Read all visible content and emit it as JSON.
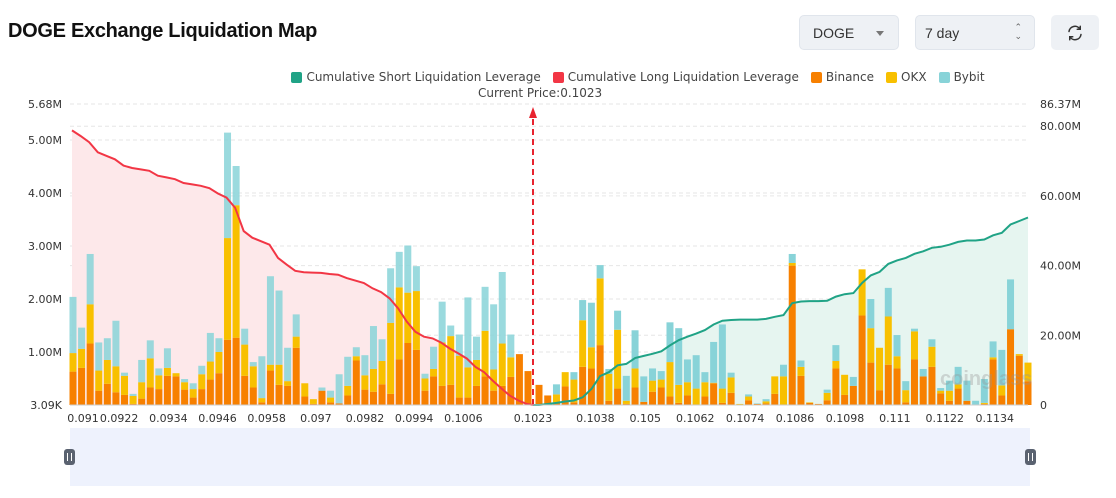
{
  "header": {
    "title": "DOGE Exchange Liquidation Map"
  },
  "controls": {
    "symbol": "DOGE",
    "period": "7 day",
    "refresh_icon": "refresh-icon"
  },
  "watermark": "coinglass",
  "colors": {
    "short": "#20a386",
    "long": "#f23645",
    "binance": "#f78000",
    "okx": "#f8c000",
    "bybit": "#88d3d8",
    "long_fill": "#fde8ea",
    "short_fill": "#e6f5f0",
    "current_line": "#e8232f"
  },
  "chart_data": {
    "type": "bar",
    "legend": [
      "Cumulative Short Liquidation Leverage",
      "Cumulative Long Liquidation Leverage",
      "Binance",
      "OKX",
      "Bybit"
    ],
    "legend_placement": "top",
    "current_price_label": "Current Price:0.1023",
    "current_price": 0.1023,
    "x_range": [
      0.091,
      0.1142
    ],
    "x_ticks": [
      "0.091",
      "0.0922",
      "0.0934",
      "0.0946",
      "0.0958",
      "0.097",
      "0.0982",
      "0.0994",
      "0.1006",
      "0.1023",
      "0.1038",
      "0.105",
      "0.1062",
      "0.1074",
      "0.1086",
      "0.1098",
      "0.111",
      "0.1122",
      "0.1134"
    ],
    "y_left": {
      "range_m": [
        0.00309,
        5.68
      ],
      "ticks": [
        "3.09K",
        "1.00M",
        "2.00M",
        "3.00M",
        "4.00M",
        "5.00M",
        "5.68M"
      ],
      "tick_values_m": [
        0.00309,
        1,
        2,
        3,
        4,
        5,
        5.68
      ]
    },
    "y_right": {
      "range_m": [
        0,
        86.37
      ],
      "ticks": [
        "0",
        "20.00M",
        "40.00M",
        "60.00M",
        "80.00M",
        "86.37M"
      ],
      "tick_values_m": [
        0,
        20,
        40,
        60,
        80,
        86.37
      ]
    },
    "grid": true,
    "bars_below_price": [
      [
        0.63,
        0.35,
        1.06
      ],
      [
        0.7,
        0.36,
        0.4
      ],
      [
        1.16,
        0.74,
        0.95
      ],
      [
        0.27,
        0.38,
        0.53
      ],
      [
        0.4,
        0.45,
        0.41
      ],
      [
        0.24,
        0.49,
        0.86
      ],
      [
        0.19,
        0.36,
        0.06
      ],
      [
        0.02,
        0.15,
        0.04
      ],
      [
        0.12,
        0.31,
        0.42
      ],
      [
        0.33,
        0.55,
        0.34
      ],
      [
        0.3,
        0.26,
        0.13
      ],
      [
        0.55,
        0.15,
        0.37
      ],
      [
        0.54,
        0.06,
        0
      ],
      [
        0.29,
        0.14,
        0.06
      ],
      [
        0.14,
        0.16,
        0.11
      ],
      [
        0.3,
        0.28,
        0.16
      ],
      [
        0.48,
        0.34,
        0.54
      ],
      [
        0.6,
        0.4,
        0.26
      ],
      [
        1.23,
        1.92,
        1.99
      ],
      [
        1.27,
        2.5,
        0.74
      ],
      [
        0.55,
        0.59,
        0.3
      ],
      [
        0.33,
        0.4,
        0.08
      ],
      [
        0.05,
        0.08,
        0.79
      ],
      [
        0.65,
        0.11,
        1.67
      ],
      [
        0.38,
        0.38,
        1.4
      ],
      [
        0.36,
        0.09,
        0.63
      ],
      [
        1.08,
        0.21,
        0.42
      ],
      [
        0.16,
        0.25,
        0
      ],
      [
        0.02,
        0.09,
        0
      ],
      [
        0.27,
        0,
        0.06
      ],
      [
        0.05,
        0.09,
        0.13
      ],
      [
        0.03,
        0,
        0.55
      ],
      [
        0.18,
        0.18,
        0.55
      ],
      [
        0.84,
        0.08,
        0.17
      ],
      [
        0.29,
        0.27,
        0.38
      ],
      [
        0.25,
        0.43,
        0.81
      ],
      [
        0.39,
        0.44,
        0.41
      ],
      [
        0.21,
        1.34,
        1.03
      ],
      [
        0.86,
        1.36,
        0.67
      ],
      [
        1.17,
        0.95,
        0.89
      ],
      [
        1.04,
        1.11,
        0.47
      ],
      [
        0.27,
        0.23,
        0.09
      ],
      [
        0.54,
        0.14,
        0.42
      ],
      [
        0.36,
        0.82,
        0.77
      ],
      [
        0.38,
        0.92,
        0.2
      ],
      [
        0.14,
        0.79,
        0.4
      ],
      [
        0.14,
        0.57,
        1.32
      ],
      [
        0.36,
        0.49,
        0.44
      ],
      [
        0.54,
        0.86,
        0.83
      ],
      [
        0.27,
        0.4,
        1.23
      ],
      [
        0.36,
        0.8,
        1.35
      ],
      [
        0.53,
        0.37,
        0.43
      ],
      [
        0.96,
        0,
        0
      ],
      [
        0.64,
        0,
        0
      ]
    ],
    "bars_above_price": [
      [
        0.38,
        0,
        0
      ],
      [
        0.18,
        0,
        0
      ],
      [
        0.05,
        0.15,
        0.19
      ],
      [
        0.35,
        0.27,
        0
      ],
      [
        0.05,
        0.43,
        0.14
      ],
      [
        0.72,
        0.88,
        0.38
      ],
      [
        0.69,
        0.4,
        0.84
      ],
      [
        1.13,
        1.26,
        0.25
      ],
      [
        0.08,
        0.51,
        0.09
      ],
      [
        0.31,
        1.11,
        0.36
      ],
      [
        0.02,
        0.06,
        0.47
      ],
      [
        0.33,
        0.36,
        0.72
      ],
      [
        0.06,
        0,
        0.48
      ],
      [
        0.25,
        0.21,
        0.23
      ],
      [
        0.33,
        0.15,
        0.16
      ],
      [
        0.16,
        0.65,
        0.75
      ],
      [
        0.04,
        0.34,
        1.07
      ],
      [
        0.18,
        0.25,
        0.43
      ],
      [
        0,
        0.31,
        0.63
      ],
      [
        0.16,
        0.27,
        0.19
      ],
      [
        0.41,
        0.01,
        0.77
      ],
      [
        0.04,
        0.27,
        1.21
      ],
      [
        0.23,
        0.29,
        0.09
      ],
      [
        0.01,
        0.01,
        0
      ],
      [
        0.09,
        0.07,
        0.04
      ],
      [
        0.02,
        0,
        0.01
      ],
      [
        0.03,
        0.04,
        0.04
      ],
      [
        0.21,
        0.33,
        0
      ],
      [
        0,
        0.54,
        0.22
      ],
      [
        2.63,
        0.05,
        0.17
      ],
      [
        0.55,
        0.17,
        0.12
      ],
      [
        0.04,
        0.01,
        0
      ],
      [
        0.02,
        0,
        0
      ],
      [
        0.09,
        0.14,
        0.06
      ],
      [
        0.69,
        0.14,
        0.3
      ],
      [
        0.19,
        0.38,
        0
      ],
      [
        0.36,
        0,
        0.17
      ],
      [
        1.69,
        0.87,
        0
      ],
      [
        0.8,
        0.65,
        0.55
      ],
      [
        0.28,
        0.8,
        0
      ],
      [
        0.76,
        0.91,
        0.54
      ],
      [
        0.69,
        0.23,
        0.4
      ],
      [
        0.05,
        0.23,
        0.17
      ],
      [
        0.86,
        0.53,
        0.05
      ],
      [
        0.54,
        0,
        0.14
      ],
      [
        0.72,
        0.38,
        0.14
      ],
      [
        0.22,
        0.05,
        0.05
      ],
      [
        0.08,
        0.19,
        0.19
      ],
      [
        0.31,
        0.08,
        0.33
      ],
      [
        0.08,
        0,
        0.38
      ],
      [
        0,
        0,
        0.08
      ],
      [
        0.02,
        0.02,
        0.45
      ],
      [
        0.86,
        0.04,
        0.3
      ],
      [
        0.18,
        0.19,
        0.67
      ],
      [
        1.43,
        0,
        0.94
      ],
      [
        0.93,
        0.03,
        0
      ],
      [
        0.45,
        0.35,
        0
      ]
    ],
    "cumulative_long_m": [
      78.8,
      77.2,
      75.4,
      72.5,
      71.5,
      70.5,
      68.7,
      68,
      67.6,
      67.2,
      65.8,
      65.3,
      64.8,
      63.7,
      63.3,
      62.9,
      62.2,
      60.7,
      59.5,
      56.6,
      49.9,
      48,
      47,
      46,
      42.2,
      40.3,
      38.5,
      38.1,
      38,
      37.9,
      37.6,
      37.4,
      36.4,
      35.7,
      35,
      33.5,
      32.4,
      30.6,
      27.7,
      23.9,
      21,
      19.6,
      19.1,
      17.9,
      16.2,
      14.8,
      13.3,
      10.9,
      9.4,
      7,
      4.8,
      2.7,
      1.3,
      0.3,
      0
    ],
    "cumulative_short_m": [
      0,
      0,
      0.3,
      0.6,
      1,
      1.3,
      2.2,
      4.6,
      8.3,
      9.4,
      11.4,
      11.8,
      13.5,
      14.1,
      14.7,
      15.4,
      17.1,
      18.6,
      19.6,
      20.5,
      21.5,
      23.1,
      24.2,
      24.4,
      24.5,
      24.5,
      24.5,
      24.7,
      25.3,
      25.8,
      29.2,
      29.7,
      29.8,
      29.8,
      29.9,
      31.1,
      31.8,
      32.1,
      35,
      37.2,
      38.2,
      40.5,
      41.5,
      42.2,
      43.4,
      44.1,
      45.1,
      45.4,
      46,
      46.8,
      47.2,
      47.2,
      47.5,
      48.7,
      49.4,
      51.8,
      52.8,
      53.8
    ]
  }
}
